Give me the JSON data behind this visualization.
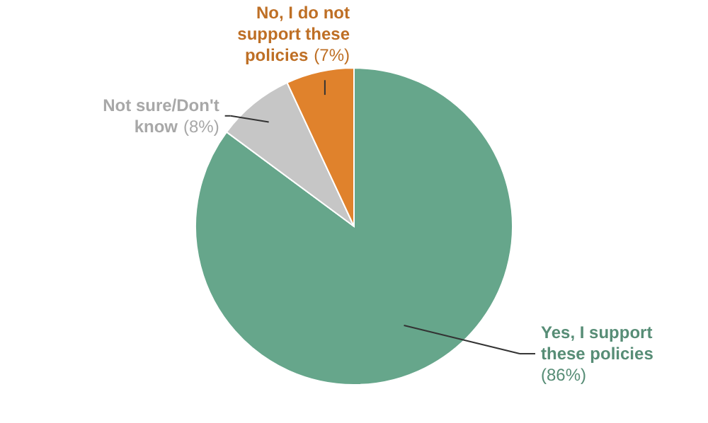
{
  "chart_data": {
    "type": "pie",
    "categories": [
      "Yes, I support these policies",
      "Not sure/Don't know",
      "No, I do not support these policies"
    ],
    "values": [
      86,
      8,
      7
    ],
    "colors": [
      "#66a68b",
      "#c6c6c6",
      "#e0822c"
    ],
    "value_labels": [
      "(86%)",
      "(8%)",
      "(7%)"
    ]
  }
}
